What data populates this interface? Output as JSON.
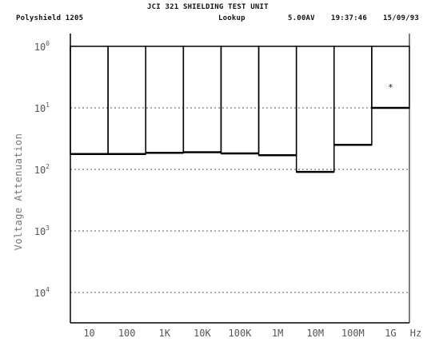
{
  "header": {
    "title": "JCI 321 SHIELDING TEST UNIT",
    "sample": "Polyshield 1205",
    "mode": "Lookup",
    "level": "5.00AV",
    "time": "19:37:46",
    "date": "15/09/93"
  },
  "chart_data": {
    "type": "bar",
    "title": "JCI 321 SHIELDING TEST UNIT",
    "ylabel": "Voltage Attenuation",
    "xlabel": "Hz",
    "y_scale": "log",
    "y_inverted": true,
    "ylim_exponent": [
      0,
      -4
    ],
    "ytick_labels": [
      {
        "base": "10",
        "exp": "0"
      },
      {
        "base": "10",
        "exp": "1"
      },
      {
        "base": "10",
        "exp": "2"
      },
      {
        "base": "10",
        "exp": "3"
      },
      {
        "base": "10",
        "exp": "4"
      }
    ],
    "categories": [
      "10",
      "100",
      "1K",
      "10K",
      "100K",
      "1M",
      "10M",
      "100M",
      "1G"
    ],
    "values_exponent": [
      -1.75,
      -1.75,
      -1.73,
      -1.72,
      -1.74,
      -1.77,
      -2.04,
      -1.6,
      -1.0
    ],
    "annotations": [
      {
        "category": "1G",
        "text": "*"
      }
    ],
    "grid": true
  }
}
